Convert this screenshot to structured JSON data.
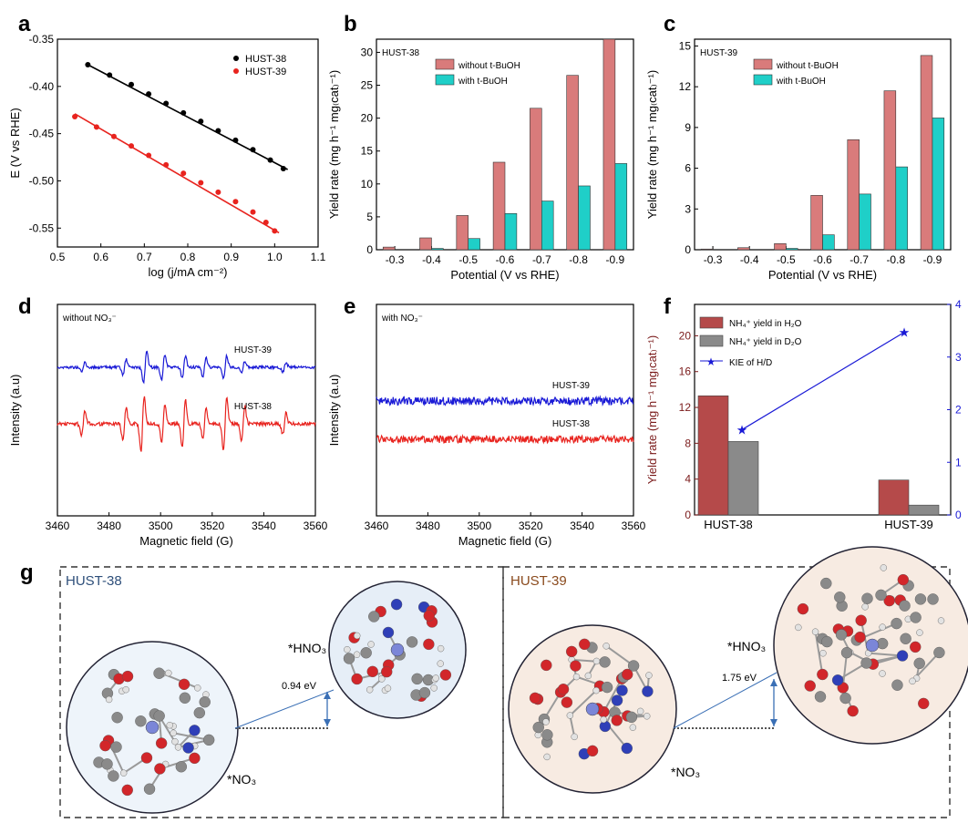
{
  "panels": {
    "a": {
      "label": "a"
    },
    "b": {
      "label": "b"
    },
    "c": {
      "label": "c"
    },
    "d": {
      "label": "d"
    },
    "e": {
      "label": "e"
    },
    "f": {
      "label": "f"
    },
    "g": {
      "label": "g"
    }
  },
  "chart_data": [
    {
      "id": "a",
      "type": "scatter",
      "xlabel": "log (j/mA cm⁻²)",
      "ylabel": "E (V vs RHE)",
      "xlim": [
        0.5,
        1.1
      ],
      "ylim": [
        -0.57,
        -0.35
      ],
      "xticks": [
        "0.5",
        "0.6",
        "0.7",
        "0.8",
        "0.9",
        "1.0",
        "1.1"
      ],
      "yticks": [
        "-0.35",
        "-0.40",
        "-0.45",
        "-0.50",
        "-0.55"
      ],
      "series": [
        {
          "name": "HUST-38",
          "color": "#000000",
          "x": [
            0.57,
            0.62,
            0.67,
            0.71,
            0.75,
            0.79,
            0.83,
            0.87,
            0.91,
            0.95,
            0.99,
            1.02
          ],
          "y": [
            -0.377,
            -0.388,
            -0.398,
            -0.408,
            -0.418,
            -0.428,
            -0.437,
            -0.447,
            -0.457,
            -0.467,
            -0.478,
            -0.487
          ],
          "fit": [
            [
              0.57,
              -0.377
            ],
            [
              1.03,
              -0.488
            ]
          ]
        },
        {
          "name": "HUST-39",
          "color": "#e8231e",
          "x": [
            0.54,
            0.59,
            0.63,
            0.67,
            0.71,
            0.75,
            0.79,
            0.83,
            0.87,
            0.91,
            0.95,
            0.98,
            1.0
          ],
          "y": [
            -0.432,
            -0.443,
            -0.453,
            -0.463,
            -0.473,
            -0.483,
            -0.492,
            -0.502,
            -0.512,
            -0.522,
            -0.533,
            -0.544,
            -0.553
          ],
          "fit": [
            [
              0.54,
              -0.429
            ],
            [
              1.01,
              -0.555
            ]
          ]
        }
      ]
    },
    {
      "id": "b",
      "type": "bar",
      "inset_title": "HUST-38",
      "xlabel": "Potential (V vs RHE)",
      "ylabel": "Yield rate (mg h⁻¹ mg₍cat₎⁻¹)",
      "categories": [
        "-0.3",
        "-0.4",
        "-0.5",
        "-0.6",
        "-0.7",
        "-0.8",
        "-0.9"
      ],
      "ylim": [
        0,
        32
      ],
      "yticks": [
        "0",
        "5",
        "10",
        "15",
        "20",
        "25",
        "30"
      ],
      "series": [
        {
          "name": "without  t-BuOH",
          "color": "#d97b7b",
          "values": [
            0.4,
            1.8,
            5.2,
            13.3,
            21.5,
            26.5,
            32.0
          ]
        },
        {
          "name": "with  t-BuOH",
          "color": "#1fcfc8",
          "values": [
            0.0,
            0.2,
            1.7,
            5.5,
            7.4,
            9.7,
            13.1
          ]
        }
      ]
    },
    {
      "id": "c",
      "type": "bar",
      "inset_title": "HUST-39",
      "xlabel": "Potential (V vs RHE)",
      "ylabel": "Yield rate (mg h⁻¹ mg₍cat₎⁻¹)",
      "categories": [
        "-0.3",
        "-0.4",
        "-0.5",
        "-0.6",
        "-0.7",
        "-0.8",
        "-0.9"
      ],
      "ylim": [
        0,
        15.5
      ],
      "yticks": [
        "0",
        "3",
        "6",
        "9",
        "12",
        "15"
      ],
      "series": [
        {
          "name": "without  t-BuOH",
          "color": "#d97b7b",
          "values": [
            0.05,
            0.15,
            0.45,
            4.0,
            8.1,
            11.7,
            14.3
          ]
        },
        {
          "name": "with  t-BuOH",
          "color": "#1fcfc8",
          "values": [
            0.0,
            0.0,
            0.1,
            1.1,
            4.1,
            6.1,
            9.7
          ]
        }
      ]
    },
    {
      "id": "d",
      "type": "line",
      "inset_title": "without NO₃⁻",
      "xlabel": "Magnetic field (G)",
      "ylabel": "Intensity (a.u)",
      "xlim": [
        3460,
        3560
      ],
      "xticks": [
        "3460",
        "3480",
        "3500",
        "3520",
        "3540",
        "3560"
      ],
      "series": [
        {
          "name": "HUST-39",
          "color": "#1a1ad6",
          "peaks": [
            [
              3470,
              0.3
            ],
            [
              3486,
              0.5
            ],
            [
              3494,
              1.0
            ],
            [
              3501,
              0.8
            ],
            [
              3509,
              0.7
            ],
            [
              3517,
              0.6
            ],
            [
              3525,
              0.75
            ],
            [
              3532,
              0.4
            ],
            [
              3548,
              0.3
            ]
          ]
        },
        {
          "name": "HUST-38",
          "color": "#e8231e",
          "peaks": [
            [
              3470,
              0.45
            ],
            [
              3486,
              0.6
            ],
            [
              3493,
              1.0
            ],
            [
              3501,
              0.7
            ],
            [
              3509,
              0.9
            ],
            [
              3517,
              0.6
            ],
            [
              3525,
              1.0
            ],
            [
              3532,
              0.65
            ],
            [
              3548,
              0.4
            ]
          ]
        }
      ]
    },
    {
      "id": "e",
      "type": "line",
      "inset_title": "with NO₃⁻",
      "xlabel": "Magnetic field (G)",
      "ylabel": "Intensity (a.u)",
      "xlim": [
        3460,
        3560
      ],
      "xticks": [
        "3460",
        "3480",
        "3500",
        "3520",
        "3540",
        "3560"
      ],
      "series": [
        {
          "name": "HUST-39",
          "color": "#1a1ad6"
        },
        {
          "name": "HUST-38",
          "color": "#e8231e"
        }
      ]
    },
    {
      "id": "f",
      "type": "bar",
      "ylabel": "Yield rate (mg h⁻¹ mg₍cat₎⁻¹)",
      "y2label": "KIE of H/D",
      "categories": [
        "HUST-38",
        "HUST-39"
      ],
      "ylim": [
        0,
        23.5
      ],
      "yticks": [
        "0",
        "4",
        "8",
        "12",
        "16",
        "20"
      ],
      "y2lim": [
        0,
        4
      ],
      "y2ticks": [
        "0",
        "1",
        "2",
        "3",
        "4"
      ],
      "series": [
        {
          "name": "NH₄⁺ yield in H₂O",
          "color": "#b54a4a",
          "values": [
            13.3,
            3.9
          ]
        },
        {
          "name": "NH₄⁺ yield in D₂O",
          "color": "#8a8a8a",
          "values": [
            8.2,
            1.1
          ]
        }
      ],
      "line": {
        "name": "KIE of H/D",
        "color": "#1a1ad6",
        "values": [
          1.62,
          3.47
        ]
      }
    }
  ],
  "g": {
    "left": {
      "title": "HUST-38",
      "energy": "0.94 eV",
      "start_label": "*NO₃",
      "end_label": "*HNO₃"
    },
    "right": {
      "title": "HUST-39",
      "energy": "1.75 eV",
      "start_label": "*NO₃",
      "end_label": "*HNO₃"
    }
  }
}
